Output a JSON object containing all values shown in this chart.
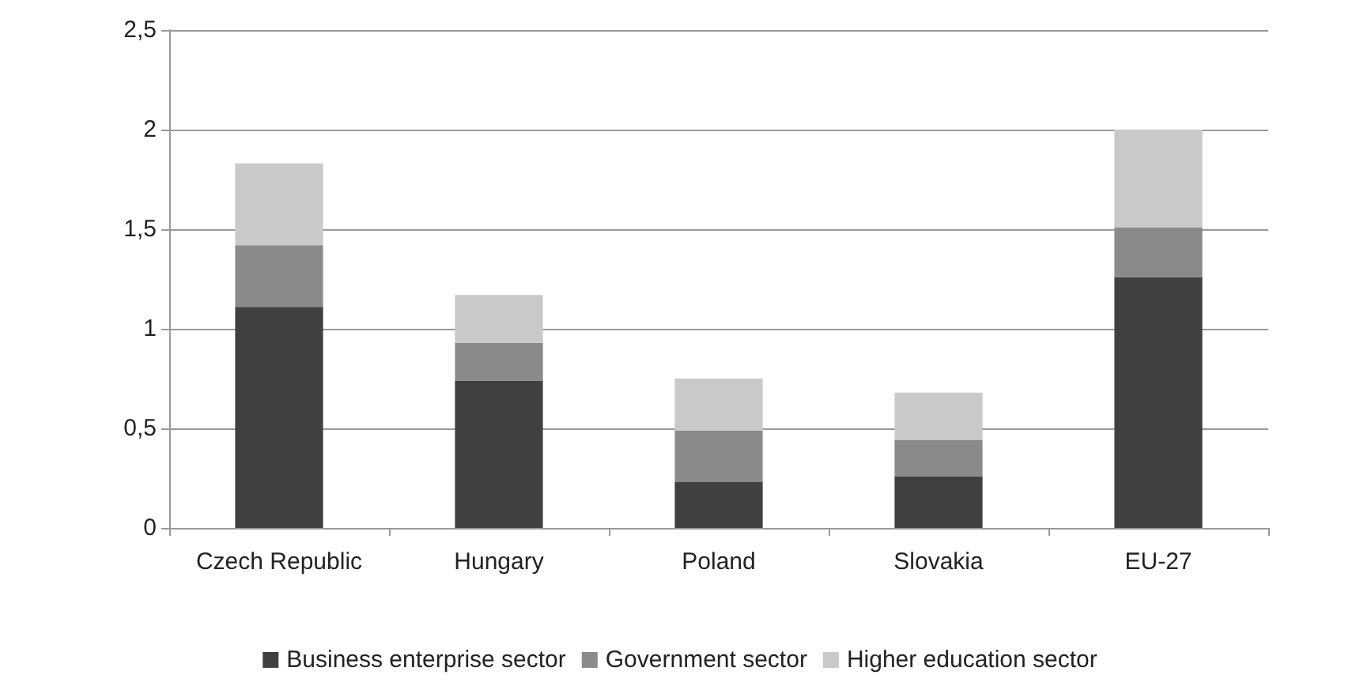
{
  "chart_data": {
    "type": "bar",
    "stacked": true,
    "categories": [
      "Czech Republic",
      "Hungary",
      "Poland",
      "Slovakia",
      "EU-27"
    ],
    "series": [
      {
        "name": "Business enterprise sector",
        "color": "#404040",
        "values": [
          1.11,
          0.74,
          0.23,
          0.26,
          1.26
        ]
      },
      {
        "name": "Government sector",
        "color": "#8a8a8c",
        "values": [
          0.31,
          0.19,
          0.26,
          0.18,
          0.25
        ]
      },
      {
        "name": "Higher education sector",
        "color": "#c8c9cb",
        "values": [
          0.41,
          0.24,
          0.26,
          0.24,
          0.49
        ]
      }
    ],
    "ylim": [
      0,
      2.5
    ],
    "yticks": [
      0,
      {
        "value": 0.5,
        "label": "0,5"
      },
      1,
      {
        "value": 1.5,
        "label": "1,5"
      },
      2,
      {
        "value": 2.5,
        "label": "2,5"
      }
    ],
    "grid": "y",
    "legend": "bottom"
  }
}
